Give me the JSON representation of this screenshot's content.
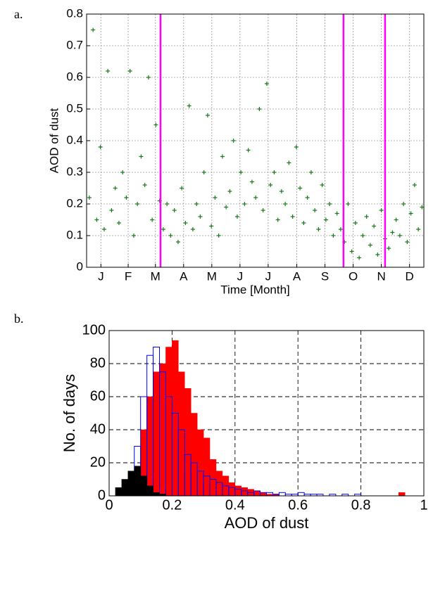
{
  "chart_data": [
    {
      "type": "scatter",
      "label": "a.",
      "xlabel": "Time [Month]",
      "ylabel": "AOD of dust",
      "color": "#1a7a1a",
      "vlines": [
        80,
        278,
        323
      ],
      "vline_color": "#ff00ff",
      "grid": true,
      "xlim": [
        0,
        365
      ],
      "ylim": [
        0,
        0.8
      ],
      "xticks": [
        {
          "value": 15.5,
          "label": "J"
        },
        {
          "value": 45,
          "label": "F"
        },
        {
          "value": 74.5,
          "label": "M"
        },
        {
          "value": 105,
          "label": "A"
        },
        {
          "value": 135.5,
          "label": "M"
        },
        {
          "value": 166,
          "label": "J"
        },
        {
          "value": 196.5,
          "label": "J"
        },
        {
          "value": 227.5,
          "label": "A"
        },
        {
          "value": 258,
          "label": "S"
        },
        {
          "value": 288.5,
          "label": "O"
        },
        {
          "value": 319,
          "label": "N"
        },
        {
          "value": 349.5,
          "label": "D"
        }
      ],
      "yticks": [
        0,
        0.1,
        0.2,
        0.3,
        0.4,
        0.5,
        0.6,
        0.7,
        0.8
      ],
      "x": [
        3,
        7,
        11,
        15,
        19,
        23,
        27,
        31,
        35,
        39,
        43,
        47,
        51,
        55,
        59,
        63,
        67,
        71,
        75,
        79,
        83,
        87,
        91,
        95,
        99,
        103,
        107,
        111,
        115,
        119,
        123,
        127,
        131,
        135,
        139,
        143,
        147,
        151,
        155,
        159,
        163,
        167,
        171,
        175,
        179,
        183,
        187,
        191,
        195,
        199,
        203,
        207,
        211,
        215,
        219,
        223,
        227,
        231,
        235,
        239,
        243,
        247,
        251,
        255,
        259,
        263,
        267,
        271,
        275,
        279,
        283,
        287,
        291,
        295,
        299,
        303,
        307,
        311,
        315,
        319,
        323,
        327,
        331,
        335,
        339,
        343,
        347,
        351,
        355,
        359,
        363
      ],
      "values": [
        0.22,
        0.75,
        0.15,
        0.38,
        0.12,
        0.62,
        0.18,
        0.25,
        0.14,
        0.3,
        0.22,
        0.62,
        0.1,
        0.2,
        0.35,
        0.26,
        0.6,
        0.15,
        0.45,
        0.21,
        0.12,
        0.2,
        0.1,
        0.18,
        0.08,
        0.25,
        0.14,
        0.51,
        0.12,
        0.2,
        0.16,
        0.3,
        0.48,
        0.13,
        0.22,
        0.1,
        0.35,
        0.19,
        0.24,
        0.4,
        0.16,
        0.3,
        0.2,
        0.37,
        0.27,
        0.22,
        0.5,
        0.18,
        0.58,
        0.26,
        0.3,
        0.15,
        0.24,
        0.2,
        0.33,
        0.16,
        0.38,
        0.25,
        0.14,
        0.22,
        0.3,
        0.18,
        0.12,
        0.26,
        0.15,
        0.2,
        0.1,
        0.17,
        0.12,
        0.08,
        0.2,
        0.05,
        0.14,
        0.03,
        0.1,
        0.16,
        0.07,
        0.13,
        0.04,
        0.18,
        0.09,
        0.06,
        0.11,
        0.15,
        0.1,
        0.2,
        0.08,
        0.17,
        0.26,
        0.12,
        0.19
      ]
    },
    {
      "type": "histogram",
      "label": "b.",
      "xlabel": "AOD of dust",
      "ylabel": "No. of days",
      "grid": true,
      "xlim": [
        0,
        1
      ],
      "ylim": [
        0,
        100
      ],
      "xticks": [
        0,
        0.2,
        0.4,
        0.6,
        0.8,
        1
      ],
      "yticks": [
        0,
        20,
        40,
        60,
        80,
        100
      ],
      "bins": [
        0,
        0.02,
        0.04,
        0.06,
        0.08,
        0.1,
        0.12,
        0.14,
        0.16,
        0.18,
        0.2,
        0.22,
        0.24,
        0.26,
        0.28,
        0.3,
        0.32,
        0.34,
        0.36,
        0.38,
        0.4,
        0.42,
        0.44,
        0.46,
        0.48,
        0.5,
        0.52,
        0.54,
        0.56,
        0.58,
        0.6,
        0.62,
        0.64,
        0.66,
        0.68,
        0.7,
        0.72,
        0.74,
        0.76,
        0.78,
        0.8,
        0.82,
        0.84,
        0.86,
        0.88,
        0.9,
        0.92,
        0.94,
        0.96,
        0.98,
        1
      ],
      "series": [
        {
          "color": "#ff0000",
          "style": "filled",
          "values": [
            0,
            0,
            2,
            5,
            15,
            40,
            60,
            75,
            80,
            90,
            94,
            75,
            65,
            50,
            40,
            35,
            22,
            15,
            12,
            8,
            6,
            5,
            4,
            3,
            2,
            1,
            1,
            0,
            0,
            0,
            0,
            0,
            0,
            0,
            0,
            0,
            0,
            0,
            0,
            0,
            0,
            0,
            0,
            0,
            0,
            0,
            2,
            0,
            0,
            0
          ]
        },
        {
          "color": "#0000ff",
          "style": "outline",
          "values": [
            0,
            0,
            2,
            8,
            30,
            60,
            85,
            90,
            75,
            60,
            50,
            40,
            25,
            20,
            15,
            12,
            10,
            8,
            6,
            5,
            4,
            3,
            2,
            3,
            2,
            2,
            1,
            2,
            1,
            1,
            2,
            1,
            1,
            1,
            0,
            1,
            0,
            1,
            0,
            1,
            0,
            0,
            0,
            0,
            0,
            0,
            0,
            0,
            0,
            0
          ]
        },
        {
          "color": "#000000",
          "style": "filled",
          "values": [
            0,
            5,
            10,
            15,
            18,
            12,
            6,
            2,
            1,
            0,
            0,
            0,
            0,
            0,
            0,
            0,
            0,
            0,
            0,
            0,
            0,
            0,
            0,
            0,
            0,
            0,
            0,
            0,
            0,
            0,
            0,
            0,
            0,
            0,
            0,
            0,
            0,
            0,
            0,
            0,
            0,
            0,
            0,
            0,
            0,
            0,
            0,
            0,
            0,
            0
          ]
        }
      ]
    }
  ]
}
